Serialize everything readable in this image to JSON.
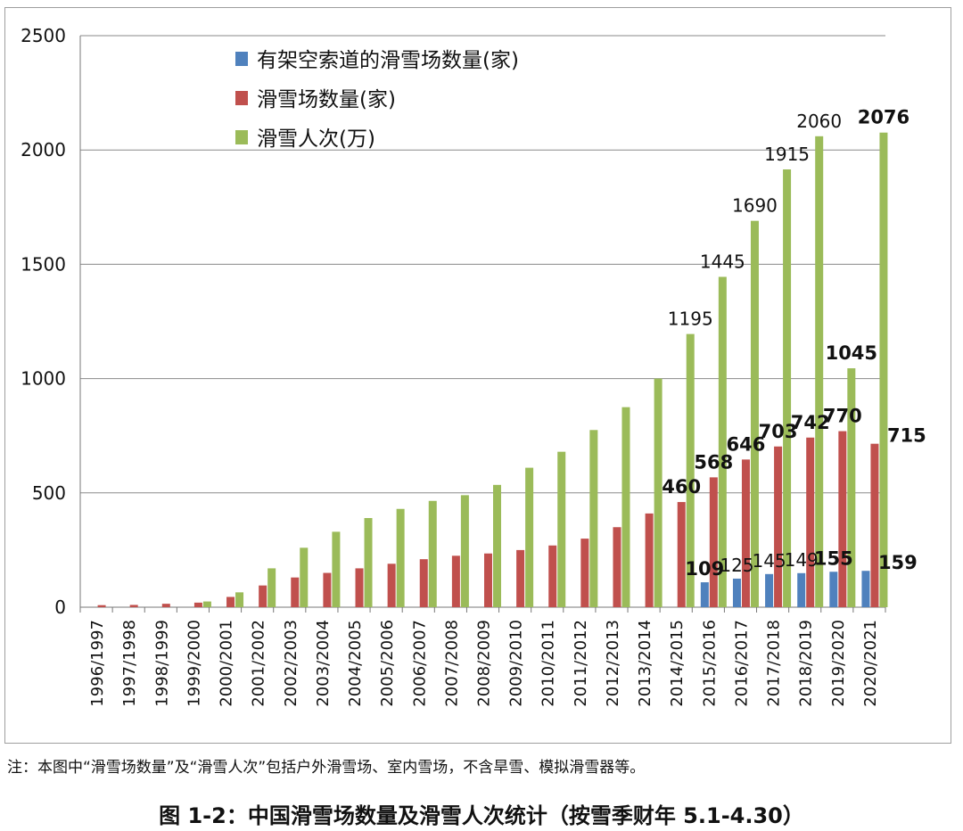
{
  "chart_data": {
    "type": "bar",
    "categories": [
      "1996/1997",
      "1997/1998",
      "1998/1999",
      "1999/2000",
      "2000/2001",
      "2001/2002",
      "2002/2003",
      "2003/2004",
      "2004/2005",
      "2005/2006",
      "2006/2007",
      "2007/2008",
      "2008/2009",
      "2009/2010",
      "2010/2011",
      "2011/2012",
      "2012/2013",
      "2013/2014",
      "2014/2015",
      "2015/2016",
      "2016/2017",
      "2017/2018",
      "2018/2019",
      "2019/2020",
      "2020/2021"
    ],
    "series": [
      {
        "name": "有架空索道的滑雪场数量(家)",
        "color": "#4f81bd",
        "values": [
          0,
          0,
          0,
          0,
          0,
          0,
          0,
          0,
          0,
          0,
          0,
          0,
          0,
          0,
          0,
          0,
          0,
          0,
          0,
          109,
          125,
          145,
          149,
          155,
          159
        ]
      },
      {
        "name": "滑雪场数量(家)",
        "color": "#c0504d",
        "values": [
          9,
          10,
          15,
          20,
          45,
          95,
          130,
          150,
          170,
          190,
          210,
          225,
          235,
          250,
          270,
          300,
          350,
          410,
          460,
          568,
          646,
          703,
          742,
          770,
          715
        ]
      },
      {
        "name": "滑雪人次(万)",
        "color": "#9bbb59",
        "values": [
          0,
          0,
          0,
          25,
          65,
          170,
          260,
          330,
          390,
          430,
          465,
          490,
          535,
          610,
          680,
          775,
          875,
          1000,
          1195,
          1445,
          1690,
          1915,
          2060,
          1045,
          2076
        ]
      }
    ],
    "data_labels": [
      {
        "text": "109",
        "series": 0,
        "index": 19,
        "bold": true
      },
      {
        "text": "125",
        "series": 0,
        "index": 20,
        "bold": false
      },
      {
        "text": "145",
        "series": 0,
        "index": 21,
        "bold": false
      },
      {
        "text": "149",
        "series": 0,
        "index": 22,
        "bold": false
      },
      {
        "text": "155",
        "series": 0,
        "index": 23,
        "bold": true
      },
      {
        "text": "159",
        "series": 0,
        "index": 24,
        "bold": true
      },
      {
        "text": "460",
        "series": 1,
        "index": 18,
        "bold": true
      },
      {
        "text": "568",
        "series": 1,
        "index": 19,
        "bold": true
      },
      {
        "text": "646",
        "series": 1,
        "index": 20,
        "bold": true
      },
      {
        "text": "703",
        "series": 1,
        "index": 21,
        "bold": true
      },
      {
        "text": "742",
        "series": 1,
        "index": 22,
        "bold": true
      },
      {
        "text": "770",
        "series": 1,
        "index": 23,
        "bold": true
      },
      {
        "text": "715",
        "series": 1,
        "index": 24,
        "bold": true
      },
      {
        "text": "1195",
        "series": 2,
        "index": 18,
        "bold": false
      },
      {
        "text": "1445",
        "series": 2,
        "index": 19,
        "bold": false
      },
      {
        "text": "1690",
        "series": 2,
        "index": 20,
        "bold": false
      },
      {
        "text": "1915",
        "series": 2,
        "index": 21,
        "bold": false
      },
      {
        "text": "2060",
        "series": 2,
        "index": 22,
        "bold": false
      },
      {
        "text": "1045",
        "series": 2,
        "index": 23,
        "bold": true
      },
      {
        "text": "2076",
        "series": 2,
        "index": 24,
        "bold": true
      }
    ],
    "y_ticks": [
      0,
      500,
      1000,
      1500,
      2000,
      2500
    ],
    "ylim": [
      0,
      2500
    ],
    "grid": true,
    "legend_position": "top-left",
    "title": "",
    "xlabel": "",
    "ylabel": ""
  },
  "note": "注：本图中“滑雪场数量”及“滑雪人次”包括户外滑雪场、室内雪场，不含旱雪、模拟滑雪器等。",
  "caption": "图 1-2：中国滑雪场数量及滑雪人次统计（按雪季财年 5.1-4.30）"
}
